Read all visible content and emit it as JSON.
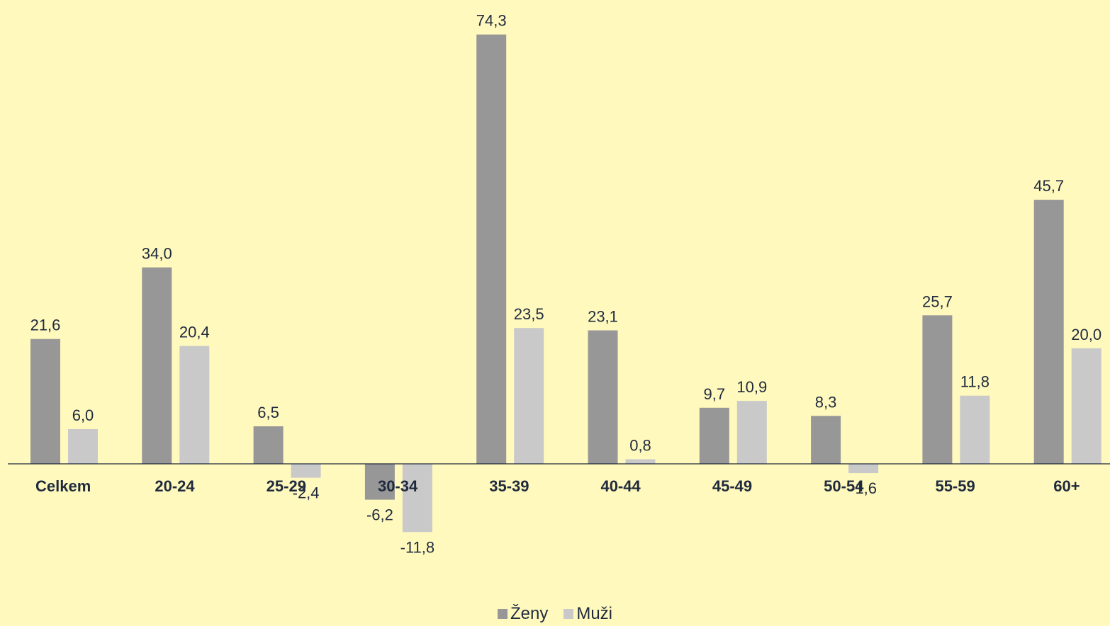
{
  "colors": {
    "background": "#FFF9BE",
    "zeny": "#979797",
    "muzi": "#C9C9C9",
    "axis": "#1F2A3D",
    "text": "#1F2A3D"
  },
  "legend": {
    "zeny": "Ženy",
    "muzi": "Muži"
  },
  "chart_data": {
    "type": "bar",
    "categories": [
      "Celkem",
      "20-24",
      "25-29",
      "30-34",
      "35-39",
      "40-44",
      "45-49",
      "50-54",
      "55-59",
      "60+"
    ],
    "series": [
      {
        "name": "Ženy",
        "values": [
          21.6,
          34.0,
          6.5,
          -6.2,
          74.3,
          23.1,
          9.7,
          8.3,
          25.7,
          45.7
        ],
        "labels": [
          "21,6",
          "34,0",
          "6,5",
          "-6,2",
          "74,3",
          "23,1",
          "9,7",
          "8,3",
          "25,7",
          "45,7"
        ]
      },
      {
        "name": "Muži",
        "values": [
          6.0,
          20.4,
          -2.4,
          -11.8,
          23.5,
          0.8,
          10.9,
          -1.6,
          11.8,
          20.0
        ],
        "labels": [
          "6,0",
          "20,4",
          "-2,4",
          "-11,8",
          "23,5",
          "0,8",
          "10,9",
          "-1,6",
          "11,8",
          "20,0"
        ]
      }
    ],
    "xlabel": "",
    "ylabel": "",
    "ylim": [
      -12,
      74.3
    ],
    "grid": false,
    "legend_position": "bottom"
  }
}
